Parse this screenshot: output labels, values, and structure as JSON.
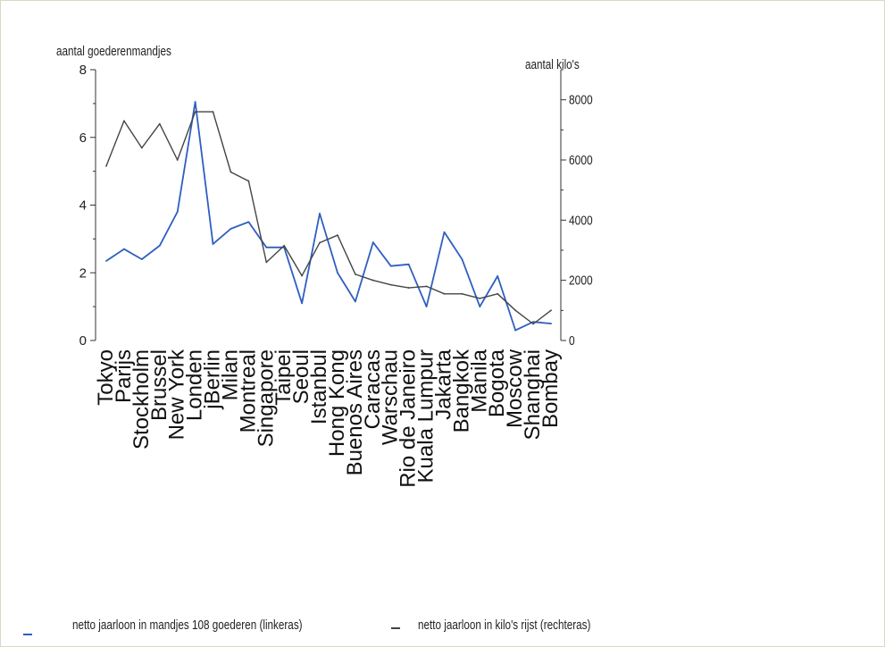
{
  "chart_data": {
    "type": "line",
    "categories": [
      "Tokyo",
      "Parijs",
      "Stockholm",
      "Brussel",
      "New York",
      "Londen",
      "jBerlin",
      "Milan",
      "Montreal",
      "Singapore",
      "Taipei",
      "Seoul",
      "Istanbul",
      "Hong Kong",
      "Buenos Aires",
      "Caracas",
      "Warschau",
      "Rio de Janeiro",
      "Kuala Lumpur",
      "Jakarta",
      "Bangkok",
      "Manila",
      "Bogota",
      "Moscow",
      "Shanghai",
      "Bombay"
    ],
    "ylabel_left": "aantal goederenmandjes",
    "ylabel_right": "aantal kilo's",
    "ylim_left": [
      0,
      8
    ],
    "ylim_right": [
      0,
      9000
    ],
    "yticks_left": [
      "0",
      "2",
      "4",
      "6",
      "8"
    ],
    "yticks_right": [
      "0",
      "2000",
      "4000",
      "6000",
      "8000"
    ],
    "series": [
      {
        "name": "netto jaarloon in mandjes 108 goederen (linkeras)",
        "axis": "left",
        "color": "#2f5fc0",
        "values": [
          2.35,
          2.7,
          2.4,
          2.8,
          3.8,
          7.05,
          2.85,
          3.3,
          3.5,
          2.75,
          2.75,
          1.1,
          3.75,
          2.0,
          1.15,
          2.9,
          2.2,
          2.25,
          1.0,
          3.2,
          2.4,
          1.0,
          1.9,
          0.3,
          0.55,
          0.5
        ]
      },
      {
        "name": "netto jaarloon in kilo's rijst (rechteras)",
        "axis": "right",
        "color": "#444444",
        "values": [
          5800,
          7300,
          6400,
          7200,
          6000,
          7600,
          7600,
          5600,
          5300,
          2600,
          3150,
          2150,
          3250,
          3500,
          2200,
          2000,
          1850,
          1750,
          1800,
          1550,
          1550,
          1400,
          1550,
          1000,
          550,
          1000
        ]
      }
    ],
    "grid": false,
    "legend": "bottom"
  }
}
